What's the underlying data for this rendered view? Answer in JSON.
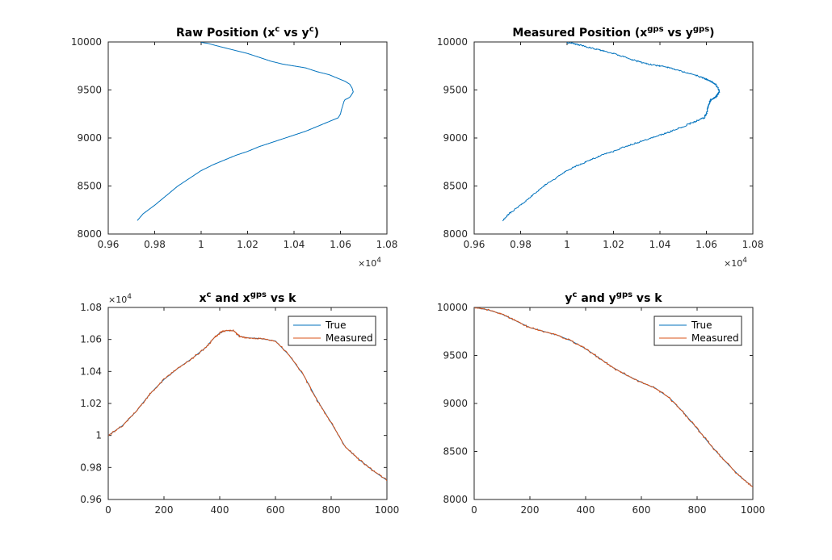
{
  "colors": {
    "true": "#0072BD",
    "measured": "#D95319",
    "axis": "#262626"
  },
  "chart_data": [
    {
      "type": "line",
      "title": {
        "base1": "Raw Position (x",
        "sup1": "c",
        "base2": " vs y",
        "sup2": "c",
        "base3": ")"
      },
      "xlim": [
        9600,
        10800
      ],
      "ylim": [
        8000,
        10000
      ],
      "xticks": [
        9600,
        9800,
        10000,
        10200,
        10400,
        10600,
        10800
      ],
      "xtick_labels": [
        "0.96",
        "0.98",
        "1",
        "1.02",
        "1.04",
        "1.06",
        "1.08"
      ],
      "yticks": [
        8000,
        8500,
        9000,
        9500,
        10000
      ],
      "ytick_labels": [
        "8000",
        "8500",
        "9000",
        "9500",
        "10000"
      ],
      "x_multiplier": {
        "base": "×10",
        "exp": "4"
      },
      "series": [
        {
          "color": "true",
          "jitter": 0,
          "x": [
            9725,
            9750,
            9800,
            9850,
            9900,
            9950,
            10000,
            10050,
            10100,
            10150,
            10200,
            10250,
            10300,
            10350,
            10400,
            10450,
            10500,
            10550,
            10590,
            10600,
            10605,
            10610,
            10615,
            10620,
            10630,
            10640,
            10645,
            10650,
            10655,
            10650,
            10640,
            10620,
            10600,
            10580,
            10550,
            10500,
            10450,
            10400,
            10350,
            10300,
            10250,
            10200,
            10150,
            10100,
            10060,
            10030,
            10000
          ],
          "y": [
            8140,
            8210,
            8300,
            8400,
            8500,
            8580,
            8660,
            8720,
            8770,
            8820,
            8860,
            8910,
            8950,
            8990,
            9030,
            9070,
            9120,
            9170,
            9210,
            9250,
            9300,
            9340,
            9380,
            9400,
            9410,
            9425,
            9440,
            9460,
            9480,
            9520,
            9560,
            9590,
            9610,
            9630,
            9660,
            9690,
            9730,
            9750,
            9770,
            9800,
            9840,
            9880,
            9910,
            9940,
            9965,
            9985,
            9995
          ]
        }
      ]
    },
    {
      "type": "line",
      "title": {
        "base1": "Measured Position (x",
        "sup1": "gps",
        "base2": " vs y",
        "sup2": "gps",
        "base3": ")"
      },
      "xlim": [
        9600,
        10800
      ],
      "ylim": [
        8000,
        10000
      ],
      "xticks": [
        9600,
        9800,
        10000,
        10200,
        10400,
        10600,
        10800
      ],
      "xtick_labels": [
        "0.96",
        "0.98",
        "1",
        "1.02",
        "1.04",
        "1.06",
        "1.08"
      ],
      "yticks": [
        8000,
        8500,
        9000,
        9500,
        10000
      ],
      "ytick_labels": [
        "8000",
        "8500",
        "9000",
        "9500",
        "10000"
      ],
      "x_multiplier": {
        "base": "×10",
        "exp": "4"
      },
      "series": [
        {
          "color": "true",
          "jitter": 1,
          "x": [
            9725,
            9750,
            9800,
            9850,
            9900,
            9950,
            10000,
            10050,
            10100,
            10150,
            10200,
            10250,
            10300,
            10350,
            10400,
            10450,
            10500,
            10550,
            10590,
            10600,
            10605,
            10610,
            10615,
            10620,
            10630,
            10640,
            10645,
            10650,
            10655,
            10650,
            10640,
            10620,
            10600,
            10580,
            10550,
            10500,
            10450,
            10400,
            10350,
            10300,
            10250,
            10200,
            10150,
            10100,
            10060,
            10030,
            10000
          ],
          "y": [
            8140,
            8210,
            8300,
            8400,
            8500,
            8580,
            8660,
            8720,
            8770,
            8820,
            8860,
            8910,
            8950,
            8990,
            9030,
            9070,
            9120,
            9170,
            9210,
            9250,
            9300,
            9340,
            9380,
            9400,
            9410,
            9425,
            9440,
            9460,
            9480,
            9520,
            9560,
            9590,
            9610,
            9630,
            9660,
            9690,
            9730,
            9750,
            9770,
            9800,
            9840,
            9880,
            9910,
            9940,
            9965,
            9985,
            9995
          ]
        }
      ]
    },
    {
      "type": "line",
      "title": {
        "base1": "x",
        "sup1": "c",
        "base2": " and x",
        "sup2": "gps",
        "base3": " vs k"
      },
      "xlim": [
        0,
        1000
      ],
      "ylim": [
        9600,
        10800
      ],
      "xticks": [
        0,
        200,
        400,
        600,
        800,
        1000
      ],
      "xtick_labels": [
        "0",
        "200",
        "400",
        "600",
        "800",
        "1000"
      ],
      "yticks": [
        9600,
        9800,
        10000,
        10200,
        10400,
        10600,
        10800
      ],
      "ytick_labels": [
        "0.96",
        "0.98",
        "1",
        "1.02",
        "1.04",
        "1.06",
        "1.08"
      ],
      "y_multiplier": {
        "base": "×10",
        "exp": "4"
      },
      "legend": {
        "position": "top-right",
        "entries": [
          "True",
          "Measured"
        ]
      },
      "series": [
        {
          "name": "True",
          "color": "true",
          "jitter": 0,
          "x": [
            0,
            50,
            100,
            150,
            200,
            250,
            300,
            350,
            380,
            400,
            420,
            450,
            470,
            500,
            550,
            600,
            650,
            700,
            750,
            800,
            850,
            900,
            950,
            1000
          ],
          "y": [
            10000,
            10060,
            10150,
            10260,
            10350,
            10420,
            10480,
            10550,
            10610,
            10640,
            10655,
            10655,
            10620,
            10610,
            10605,
            10590,
            10500,
            10380,
            10220,
            10080,
            9930,
            9850,
            9780,
            9720
          ]
        },
        {
          "name": "Measured",
          "color": "measured",
          "jitter": 1,
          "x": [
            0,
            50,
            100,
            150,
            200,
            250,
            300,
            350,
            380,
            400,
            420,
            450,
            470,
            500,
            550,
            600,
            650,
            700,
            750,
            800,
            850,
            900,
            950,
            1000
          ],
          "y": [
            10000,
            10060,
            10150,
            10260,
            10350,
            10420,
            10480,
            10550,
            10610,
            10640,
            10655,
            10655,
            10620,
            10610,
            10605,
            10590,
            10500,
            10380,
            10220,
            10080,
            9930,
            9850,
            9780,
            9720
          ]
        }
      ]
    },
    {
      "type": "line",
      "title": {
        "base1": "y",
        "sup1": "c",
        "base2": " and y",
        "sup2": "gps",
        "base3": " vs k"
      },
      "xlim": [
        0,
        1000
      ],
      "ylim": [
        8000,
        10000
      ],
      "xticks": [
        0,
        200,
        400,
        600,
        800,
        1000
      ],
      "xtick_labels": [
        "0",
        "200",
        "400",
        "600",
        "800",
        "1000"
      ],
      "yticks": [
        8000,
        8500,
        9000,
        9500,
        10000
      ],
      "ytick_labels": [
        "8000",
        "8500",
        "9000",
        "9500",
        "10000"
      ],
      "legend": {
        "position": "top-right",
        "entries": [
          "True",
          "Measured"
        ]
      },
      "series": [
        {
          "name": "True",
          "color": "true",
          "jitter": 0,
          "x": [
            0,
            50,
            100,
            150,
            200,
            250,
            300,
            350,
            400,
            450,
            500,
            550,
            600,
            650,
            700,
            750,
            800,
            850,
            900,
            950,
            1000
          ],
          "y": [
            10000,
            9975,
            9930,
            9860,
            9790,
            9750,
            9710,
            9650,
            9570,
            9470,
            9370,
            9290,
            9220,
            9160,
            9060,
            8910,
            8740,
            8560,
            8400,
            8250,
            8130
          ]
        },
        {
          "name": "Measured",
          "color": "measured",
          "jitter": 1,
          "x": [
            0,
            50,
            100,
            150,
            200,
            250,
            300,
            350,
            400,
            450,
            500,
            550,
            600,
            650,
            700,
            750,
            800,
            850,
            900,
            950,
            1000
          ],
          "y": [
            10000,
            9975,
            9930,
            9860,
            9790,
            9750,
            9710,
            9650,
            9570,
            9470,
            9370,
            9290,
            9220,
            9160,
            9060,
            8910,
            8740,
            8560,
            8400,
            8250,
            8130
          ]
        }
      ]
    }
  ]
}
